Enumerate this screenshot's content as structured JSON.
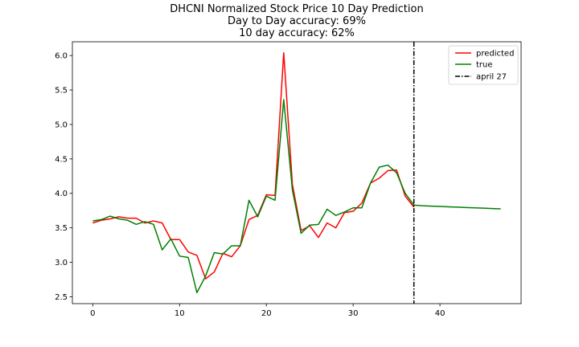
{
  "chart_data": {
    "type": "line",
    "title": "DHCNI Normalized Stock Price 10 Day Prediction",
    "subtitles": [
      "Day to Day accuracy: 69%",
      "10 day accuracy: 62%"
    ],
    "xlabel": "",
    "ylabel": "",
    "xlim": [
      -2.35,
      49.35
    ],
    "ylim": [
      2.4,
      6.2
    ],
    "xticks": [
      0,
      10,
      20,
      30,
      40
    ],
    "yticks": [
      2.5,
      3.0,
      3.5,
      4.0,
      4.5,
      5.0,
      5.5,
      6.0
    ],
    "ytick_labels": [
      "2.5",
      "3.0",
      "3.5",
      "4.0",
      "4.5",
      "5.0",
      "5.5",
      "6.0"
    ],
    "grid": false,
    "legend_position": "top-right",
    "series": [
      {
        "name": "predicted",
        "color": "#ff0000",
        "x": [
          0,
          1,
          2,
          3,
          4,
          5,
          6,
          7,
          8,
          9,
          10,
          11,
          12,
          13,
          14,
          15,
          16,
          17,
          18,
          19,
          20,
          21,
          22,
          23,
          24,
          25,
          26,
          27,
          28,
          29,
          30,
          31,
          32,
          33,
          34,
          35,
          36,
          37
        ],
        "y": [
          3.57,
          3.61,
          3.63,
          3.66,
          3.64,
          3.64,
          3.57,
          3.6,
          3.57,
          3.33,
          3.33,
          3.15,
          3.1,
          2.76,
          2.86,
          3.13,
          3.08,
          3.24,
          3.62,
          3.68,
          3.98,
          3.97,
          6.04,
          4.13,
          3.46,
          3.53,
          3.36,
          3.57,
          3.5,
          3.72,
          3.74,
          3.86,
          4.15,
          4.22,
          4.33,
          4.34,
          3.96,
          3.8
        ]
      },
      {
        "name": "true",
        "color": "#008000",
        "x": [
          0,
          1,
          2,
          3,
          4,
          5,
          6,
          7,
          8,
          9,
          10,
          11,
          12,
          13,
          14,
          15,
          16,
          17,
          18,
          19,
          20,
          21,
          22,
          23,
          24,
          25,
          26,
          27,
          28,
          29,
          30,
          31,
          32,
          33,
          34,
          35,
          36,
          37,
          38,
          39,
          40,
          41,
          42,
          43,
          44,
          45,
          46,
          47
        ],
        "y": [
          3.6,
          3.62,
          3.67,
          3.63,
          3.61,
          3.55,
          3.59,
          3.55,
          3.18,
          3.34,
          3.09,
          3.07,
          2.56,
          2.8,
          3.14,
          3.12,
          3.24,
          3.24,
          3.9,
          3.66,
          3.96,
          3.9,
          5.36,
          4.05,
          3.42,
          3.54,
          3.55,
          3.77,
          3.68,
          3.73,
          3.79,
          3.79,
          4.15,
          4.38,
          4.41,
          4.3,
          4.0,
          3.83,
          3.82,
          3.815,
          3.81,
          3.805,
          3.8,
          3.795,
          3.79,
          3.785,
          3.78,
          3.775
        ]
      }
    ],
    "vlines": [
      {
        "name": "april 27",
        "x": 37,
        "color": "#000000",
        "style": "dashdot"
      }
    ]
  }
}
